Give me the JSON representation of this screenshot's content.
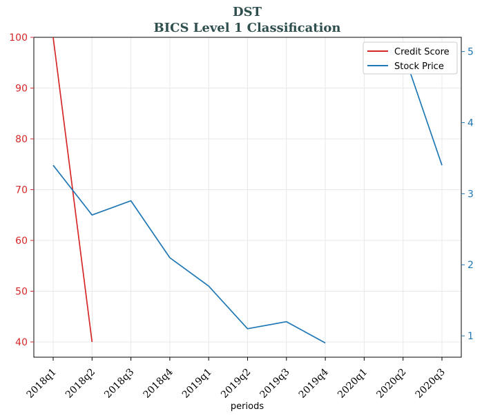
{
  "chart_data": {
    "type": "line",
    "title": "DST",
    "subtitle": "BICS Level 1 Classification",
    "xlabel": "periods",
    "ylabel": "",
    "y2label": "",
    "categories": [
      "2018q1",
      "2018q2",
      "2018q3",
      "2018q4",
      "2019q1",
      "2019q2",
      "2019q3",
      "2019q4",
      "2020q1",
      "2020q2",
      "2020q3"
    ],
    "ylim": [
      37,
      100
    ],
    "y_ticks": [
      40,
      50,
      60,
      70,
      80,
      90,
      100
    ],
    "y2lim": [
      0.7,
      5.2
    ],
    "y2_ticks": [
      1,
      2,
      3,
      4,
      5
    ],
    "grid": true,
    "legend_position": "top-right",
    "series": [
      {
        "name": "Credit Score",
        "axis": "left",
        "color": "#d62728",
        "values": [
          100,
          40,
          null,
          null,
          null,
          null,
          null,
          null,
          null,
          null,
          null
        ]
      },
      {
        "name": "Stock Price",
        "axis": "right",
        "color": "#1f77b4",
        "values": [
          3.4,
          2.7,
          2.9,
          2.1,
          1.7,
          1.1,
          1.2,
          0.9,
          null,
          5.0,
          3.4
        ]
      }
    ],
    "colors": {
      "left_axis": "#d62728",
      "right_axis": "#1f77b4",
      "title": "#2f4f4f"
    }
  }
}
